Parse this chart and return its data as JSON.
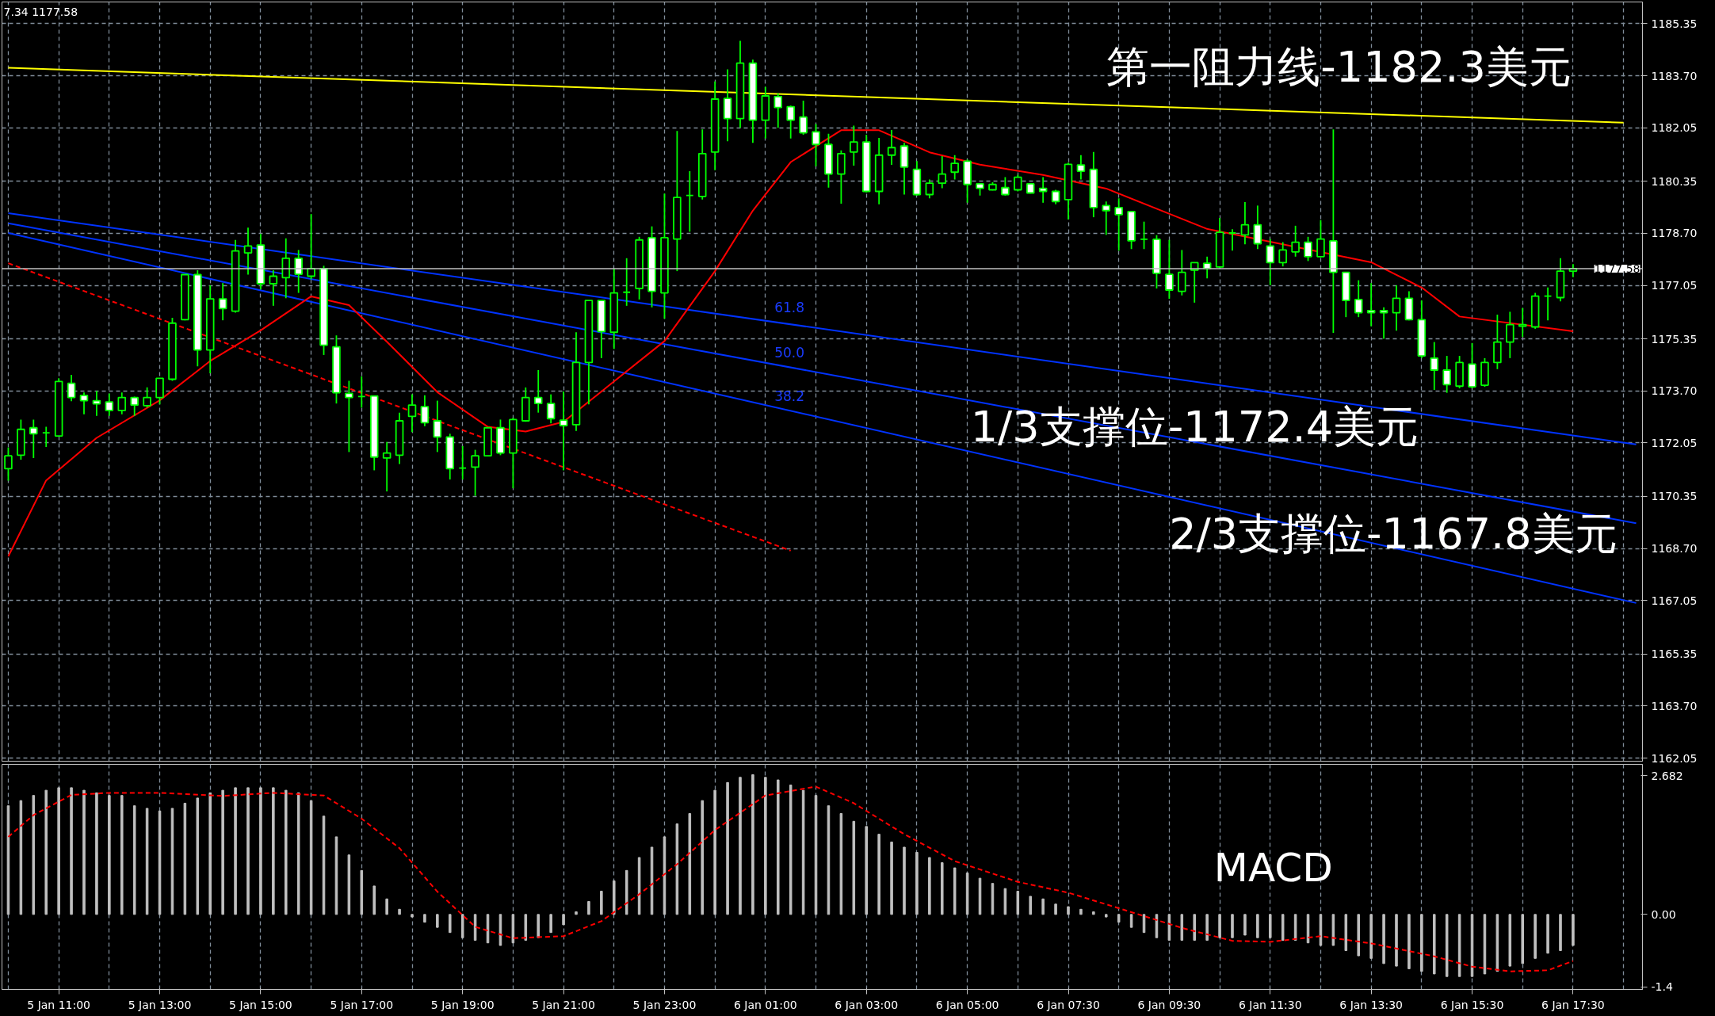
{
  "chart_data": [
    {
      "type": "candlestick",
      "color": "#00ff00",
      "categories": [
        null,
        null,
        null,
        null,
        null,
        null,
        null,
        null,
        null,
        null,
        null,
        null,
        null,
        null,
        null,
        null,
        null,
        null,
        null,
        null,
        null,
        null,
        null,
        null,
        null,
        null,
        null,
        null,
        null,
        null,
        null,
        null,
        null,
        null,
        null,
        null,
        null,
        null,
        null,
        null,
        null,
        null,
        null,
        null,
        null,
        null,
        null,
        null,
        null,
        null,
        null,
        null,
        null,
        null,
        null,
        null,
        null,
        null,
        null,
        null,
        null,
        null,
        null,
        null,
        null,
        null,
        null,
        null,
        null,
        null,
        null,
        null,
        null,
        null,
        null,
        null,
        null,
        null,
        null,
        null,
        null,
        null,
        null,
        null,
        null,
        null,
        null,
        null,
        null,
        null,
        null,
        null,
        null,
        null,
        null,
        null,
        null,
        null,
        null,
        null,
        null,
        null,
        null,
        null,
        null,
        null,
        null,
        null,
        null,
        null,
        null,
        null,
        null,
        null,
        null,
        null,
        null,
        null,
        null,
        null,
        null,
        null,
        null,
        null,
        null,
        null,
        null,
        null,
        null,
        null
      ],
      "ohlc": [
        [
          1171.23,
          1171.9,
          1170.85,
          1171.64
        ],
        [
          1171.66,
          1172.79,
          1171.52,
          1172.48
        ],
        [
          1172.53,
          1172.79,
          1171.57,
          1172.34
        ],
        [
          1172.37,
          1172.56,
          1171.92,
          1172.37
        ],
        [
          1172.27,
          1174.1,
          1172.27,
          1174.0
        ],
        [
          1173.94,
          1174.21,
          1173.37,
          1173.49
        ],
        [
          1173.56,
          1173.65,
          1172.96,
          1173.39
        ],
        [
          1173.39,
          1173.7,
          1172.91,
          1173.29
        ],
        [
          1173.35,
          1173.62,
          1172.91,
          1173.08
        ],
        [
          1173.08,
          1173.65,
          1172.96,
          1173.49
        ],
        [
          1173.49,
          1173.52,
          1172.91,
          1173.25
        ],
        [
          1173.23,
          1173.81,
          1173.17,
          1173.49
        ],
        [
          1173.49,
          1174.1,
          1173.27,
          1174.1
        ],
        [
          1174.07,
          1176.02,
          1174.02,
          1175.85
        ],
        [
          1175.96,
          1177.39,
          1175.94,
          1177.39
        ],
        [
          1177.39,
          1177.53,
          1174.48,
          1175.0
        ],
        [
          1175.0,
          1177.05,
          1174.26,
          1176.62
        ],
        [
          1176.62,
          1177.12,
          1175.94,
          1176.31
        ],
        [
          1176.23,
          1178.49,
          1176.18,
          1178.14
        ],
        [
          1178.08,
          1178.88,
          1177.39,
          1178.3
        ],
        [
          1178.33,
          1178.68,
          1176.92,
          1177.1
        ],
        [
          1177.1,
          1177.53,
          1176.4,
          1177.34
        ],
        [
          1177.29,
          1178.54,
          1176.64,
          1177.91
        ],
        [
          1177.91,
          1178.17,
          1176.81,
          1177.4
        ],
        [
          1177.34,
          1179.31,
          1177.24,
          1177.58
        ],
        [
          1177.58,
          1177.67,
          1174.84,
          1175.15
        ],
        [
          1175.1,
          1175.46,
          1173.3,
          1173.64
        ],
        [
          1173.62,
          1174.02,
          1171.76,
          1173.49
        ],
        [
          1173.52,
          1174.16,
          1173.17,
          1173.52
        ],
        [
          1173.54,
          1173.54,
          1171.18,
          1171.6
        ],
        [
          1171.57,
          1172.08,
          1170.51,
          1171.73
        ],
        [
          1171.66,
          1173.01,
          1171.38,
          1172.75
        ],
        [
          1172.89,
          1173.59,
          1172.39,
          1173.25
        ],
        [
          1173.2,
          1173.56,
          1172.58,
          1172.69
        ],
        [
          1172.75,
          1173.39,
          1171.76,
          1172.24
        ],
        [
          1172.24,
          1172.34,
          1170.89,
          1171.23
        ],
        [
          1171.25,
          1171.95,
          1170.89,
          1171.25
        ],
        [
          1171.28,
          1171.83,
          1170.37,
          1171.64
        ],
        [
          1171.64,
          1172.53,
          1171.62,
          1172.53
        ],
        [
          1172.53,
          1172.79,
          1171.66,
          1171.73
        ],
        [
          1171.73,
          1172.85,
          1170.61,
          1172.79
        ],
        [
          1172.75,
          1173.81,
          1172.72,
          1173.49
        ],
        [
          1173.49,
          1174.36,
          1173.01,
          1173.3
        ],
        [
          1173.3,
          1173.59,
          1172.67,
          1172.82
        ],
        [
          1172.77,
          1173.68,
          1171.18,
          1172.6
        ],
        [
          1172.63,
          1175.56,
          1172.43,
          1174.6
        ],
        [
          1174.6,
          1176.57,
          1173.27,
          1176.57
        ],
        [
          1176.57,
          1176.57,
          1174.74,
          1175.58
        ],
        [
          1175.56,
          1177.58,
          1175.03,
          1176.81
        ],
        [
          1176.83,
          1177.91,
          1176.4,
          1176.83
        ],
        [
          1176.95,
          1178.59,
          1176.6,
          1178.49
        ],
        [
          1178.56,
          1178.92,
          1176.35,
          1176.86
        ],
        [
          1176.81,
          1179.96,
          1175.99,
          1178.56
        ],
        [
          1178.52,
          1181.95,
          1177.5,
          1179.84
        ],
        [
          1179.9,
          1180.67,
          1178.75,
          1179.9
        ],
        [
          1179.87,
          1182.0,
          1179.77,
          1181.23
        ],
        [
          1181.28,
          1183.52,
          1180.7,
          1182.96
        ],
        [
          1182.98,
          1183.9,
          1181.62,
          1182.34
        ],
        [
          1182.34,
          1184.81,
          1182.05,
          1184.1
        ],
        [
          1184.1,
          1184.21,
          1181.57,
          1182.29
        ],
        [
          1182.29,
          1183.35,
          1181.71,
          1183.06
        ],
        [
          1183.04,
          1183.14,
          1182.05,
          1182.69
        ],
        [
          1182.72,
          1182.75,
          1181.71,
          1182.29
        ],
        [
          1182.39,
          1182.91,
          1181.83,
          1181.89
        ],
        [
          1181.92,
          1182.17,
          1180.83,
          1181.52
        ],
        [
          1181.52,
          1181.86,
          1180.15,
          1180.58
        ],
        [
          1180.58,
          1181.33,
          1179.64,
          1181.23
        ],
        [
          1181.28,
          1182.12,
          1180.85,
          1181.6
        ],
        [
          1181.6,
          1181.83,
          1180.0,
          1180.03
        ],
        [
          1180.03,
          1181.73,
          1179.62,
          1181.18
        ],
        [
          1181.18,
          1181.98,
          1180.87,
          1181.42
        ],
        [
          1181.47,
          1181.57,
          1179.93,
          1180.8
        ],
        [
          1180.73,
          1180.99,
          1179.9,
          1179.93
        ],
        [
          1179.93,
          1180.41,
          1179.81,
          1180.29
        ],
        [
          1180.29,
          1181.15,
          1180.13,
          1180.58
        ],
        [
          1180.64,
          1181.18,
          1180.41,
          1180.92
        ],
        [
          1180.99,
          1181.04,
          1179.67,
          1180.25
        ],
        [
          1180.27,
          1180.29,
          1179.9,
          1180.13
        ],
        [
          1180.08,
          1180.32,
          1180.06,
          1180.25
        ],
        [
          1180.15,
          1180.48,
          1179.9,
          1179.93
        ],
        [
          1180.08,
          1180.56,
          1180.03,
          1180.48
        ],
        [
          1180.27,
          1180.29,
          1179.96,
          1179.98
        ],
        [
          1180.13,
          1180.48,
          1179.67,
          1180.03
        ],
        [
          1180.03,
          1180.08,
          1179.62,
          1179.71
        ],
        [
          1179.77,
          1180.94,
          1179.14,
          1180.89
        ],
        [
          1180.87,
          1181.18,
          1180.41,
          1180.67
        ],
        [
          1180.73,
          1181.28,
          1179.21,
          1179.52
        ],
        [
          1179.58,
          1179.71,
          1178.65,
          1179.42
        ],
        [
          1179.52,
          1179.81,
          1178.15,
          1179.29
        ],
        [
          1179.39,
          1179.39,
          1178.2,
          1178.46
        ],
        [
          1178.51,
          1179.07,
          1178.2,
          1178.51
        ],
        [
          1178.51,
          1178.64,
          1176.95,
          1177.43
        ],
        [
          1177.4,
          1178.49,
          1176.62,
          1176.9
        ],
        [
          1176.86,
          1178.17,
          1176.73,
          1177.46
        ],
        [
          1177.53,
          1177.77,
          1176.5,
          1177.77
        ],
        [
          1177.75,
          1177.96,
          1177.27,
          1177.58
        ],
        [
          1177.63,
          1179.19,
          1177.6,
          1178.73
        ],
        [
          1178.71,
          1178.83,
          1178.15,
          1178.71
        ],
        [
          1178.65,
          1179.69,
          1178.35,
          1178.97
        ],
        [
          1178.97,
          1179.58,
          1178.2,
          1178.37
        ],
        [
          1178.3,
          1178.52,
          1177.05,
          1177.77
        ],
        [
          1177.77,
          1178.42,
          1177.65,
          1178.17
        ],
        [
          1178.11,
          1178.94,
          1177.96,
          1178.42
        ],
        [
          1178.42,
          1178.59,
          1177.82,
          1177.96
        ],
        [
          1177.96,
          1179.12,
          1177.94,
          1178.52
        ],
        [
          1178.46,
          1182.0,
          1175.54,
          1177.46
        ],
        [
          1177.46,
          1177.46,
          1176.04,
          1176.57
        ],
        [
          1176.6,
          1177.21,
          1176.04,
          1176.18
        ],
        [
          1176.25,
          1177.12,
          1175.75,
          1176.18
        ],
        [
          1176.25,
          1176.35,
          1175.35,
          1176.18
        ],
        [
          1176.18,
          1177.05,
          1175.61,
          1176.64
        ],
        [
          1176.64,
          1176.86,
          1175.94,
          1175.96
        ],
        [
          1175.96,
          1176.57,
          1174.74,
          1174.81
        ],
        [
          1174.74,
          1175.25,
          1173.73,
          1174.36
        ],
        [
          1174.36,
          1174.81,
          1173.64,
          1173.9
        ],
        [
          1173.85,
          1174.81,
          1173.78,
          1174.6
        ],
        [
          1174.55,
          1175.22,
          1173.78,
          1173.83
        ],
        [
          1173.88,
          1174.74,
          1173.83,
          1174.6
        ],
        [
          1174.6,
          1176.12,
          1174.39,
          1175.25
        ],
        [
          1175.25,
          1176.21,
          1174.74,
          1175.8
        ],
        [
          1175.75,
          1176.33,
          1175.41,
          1175.8
        ],
        [
          1175.73,
          1176.81,
          1175.67,
          1176.71
        ],
        [
          1176.71,
          1176.98,
          1175.94,
          1176.71
        ],
        [
          1176.66,
          1177.91,
          1176.54,
          1177.5
        ],
        [
          1177.5,
          1177.72,
          1177.31,
          1177.58
        ],
        null,
        null,
        null,
        null,
        null
      ],
      "series": [
        {
          "type": "line",
          "color": "#ffff00",
          "values": [
            1183.95,
            null,
            null,
            null,
            null,
            null,
            null,
            null,
            null,
            null,
            null,
            null,
            null,
            null,
            null,
            null,
            null,
            null,
            null,
            null,
            null,
            null,
            null,
            null,
            null,
            null,
            null,
            null,
            null,
            null,
            null,
            null,
            null,
            null,
            null,
            null,
            null,
            null,
            null,
            null,
            null,
            null,
            null,
            null,
            null,
            null,
            null,
            null,
            null,
            null,
            null,
            null,
            null,
            null,
            null,
            null,
            null,
            null,
            null,
            null,
            null,
            null,
            null,
            null,
            null,
            null,
            null,
            null,
            null,
            null,
            null,
            null,
            null,
            null,
            null,
            null,
            null,
            null,
            null,
            null,
            null,
            null,
            null,
            null,
            null,
            null,
            null,
            null,
            null,
            null,
            null,
            null,
            null,
            null,
            null,
            null,
            null,
            null,
            null,
            null,
            null,
            null,
            null,
            null,
            null,
            null,
            null,
            null,
            null,
            null,
            null,
            null,
            null,
            null,
            null,
            null,
            null,
            null,
            null,
            null,
            null,
            null,
            null,
            null,
            null,
            null,
            null,
            null,
            1182.21,
            null
          ]
        },
        {
          "type": "line",
          "color": "#0033ff",
          "values": [
            1179.34,
            null,
            null,
            null,
            null,
            null,
            null,
            null,
            null,
            null,
            null,
            null,
            null,
            null,
            null,
            null,
            null,
            null,
            null,
            null,
            null,
            null,
            null,
            null,
            null,
            null,
            null,
            null,
            null,
            null,
            null,
            null,
            null,
            null,
            null,
            null,
            null,
            null,
            null,
            null,
            null,
            null,
            null,
            null,
            null,
            null,
            null,
            null,
            null,
            null,
            null,
            null,
            null,
            null,
            null,
            null,
            null,
            null,
            null,
            null,
            null,
            null,
            null,
            null,
            null,
            null,
            null,
            null,
            null,
            null,
            null,
            null,
            null,
            null,
            null,
            null,
            null,
            null,
            null,
            null,
            null,
            null,
            null,
            null,
            null,
            null,
            null,
            null,
            null,
            null,
            null,
            null,
            null,
            null,
            null,
            null,
            null,
            null,
            null,
            null,
            null,
            null,
            null,
            null,
            null,
            null,
            null,
            null,
            null,
            null,
            null,
            null,
            null,
            null,
            null,
            null,
            null,
            null,
            null,
            null,
            null,
            null,
            null,
            null,
            null,
            null,
            null,
            null,
            null,
            1172.0
          ]
        },
        {
          "type": "line",
          "color": "#0033ff",
          "values": [
            1179.02,
            null,
            null,
            null,
            null,
            null,
            null,
            null,
            null,
            null,
            null,
            null,
            null,
            null,
            null,
            null,
            null,
            null,
            null,
            null,
            null,
            null,
            null,
            null,
            null,
            null,
            null,
            null,
            null,
            null,
            null,
            null,
            null,
            null,
            null,
            null,
            null,
            null,
            null,
            null,
            null,
            null,
            null,
            null,
            null,
            null,
            null,
            null,
            null,
            null,
            null,
            null,
            null,
            null,
            null,
            null,
            null,
            null,
            null,
            null,
            null,
            null,
            null,
            null,
            null,
            null,
            null,
            null,
            null,
            null,
            null,
            null,
            null,
            null,
            null,
            null,
            null,
            null,
            null,
            null,
            null,
            null,
            null,
            null,
            null,
            null,
            null,
            null,
            null,
            null,
            null,
            null,
            null,
            null,
            null,
            null,
            null,
            null,
            null,
            null,
            null,
            null,
            null,
            null,
            null,
            null,
            null,
            null,
            null,
            null,
            null,
            null,
            null,
            null,
            null,
            null,
            null,
            null,
            null,
            null,
            null,
            null,
            null,
            null,
            null,
            null,
            null,
            null,
            null,
            1169.5
          ]
        },
        {
          "type": "line",
          "color": "#0033ff",
          "values": [
            1178.71,
            null,
            null,
            null,
            null,
            null,
            null,
            null,
            null,
            null,
            null,
            null,
            null,
            null,
            null,
            null,
            null,
            null,
            null,
            null,
            null,
            null,
            null,
            null,
            null,
            null,
            null,
            null,
            null,
            null,
            null,
            null,
            null,
            null,
            null,
            null,
            null,
            null,
            null,
            null,
            null,
            null,
            null,
            null,
            null,
            null,
            null,
            null,
            null,
            null,
            null,
            null,
            null,
            null,
            null,
            null,
            null,
            null,
            null,
            null,
            null,
            null,
            null,
            null,
            null,
            null,
            null,
            null,
            null,
            null,
            null,
            null,
            null,
            null,
            null,
            null,
            null,
            null,
            null,
            null,
            null,
            null,
            null,
            null,
            null,
            null,
            null,
            null,
            null,
            null,
            null,
            null,
            null,
            null,
            null,
            null,
            null,
            null,
            null,
            null,
            null,
            null,
            null,
            null,
            null,
            null,
            null,
            null,
            null,
            null,
            null,
            null,
            null,
            null,
            null,
            null,
            null,
            null,
            null,
            null,
            null,
            null,
            null,
            null,
            null,
            null,
            null,
            null,
            null,
            1166.97
          ]
        },
        {
          "type": "line",
          "color": "#ff0000",
          "line_style": "dashed",
          "values": [
            1177.75,
            null,
            null,
            null,
            null,
            null,
            null,
            null,
            null,
            null,
            null,
            null,
            null,
            null,
            null,
            null,
            null,
            null,
            null,
            null,
            null,
            null,
            null,
            null,
            null,
            null,
            null,
            null,
            null,
            null,
            null,
            null,
            null,
            null,
            null,
            null,
            null,
            null,
            null,
            null,
            null,
            null,
            null,
            null,
            null,
            null,
            null,
            null,
            null,
            null,
            null,
            null,
            null,
            null,
            null,
            null,
            null,
            null,
            null,
            null,
            null,
            null,
            1168.63,
            null,
            null,
            null,
            null,
            null,
            null,
            null,
            null,
            null,
            null,
            null,
            null,
            null,
            null,
            null,
            null,
            null,
            null,
            null,
            null,
            null,
            null,
            null,
            null,
            null,
            null,
            null,
            null,
            null,
            null,
            null,
            null,
            null,
            null,
            null,
            null,
            null,
            null,
            null,
            null,
            null,
            null,
            null,
            null,
            null,
            null,
            null,
            null,
            null,
            null,
            null,
            null,
            null,
            null,
            null,
            null,
            null,
            null,
            null,
            null,
            null,
            null,
            null,
            null,
            null,
            null,
            null
          ]
        },
        {
          "type": "line",
          "color": "#ff0000",
          "values": [
            1168.45,
            null,
            null,
            1170.86,
            null,
            null,
            null,
            1172.21,
            null,
            null,
            null,
            null,
            1173.4,
            null,
            null,
            null,
            1174.65,
            null,
            null,
            null,
            1175.62,
            null,
            null,
            null,
            1176.7,
            null,
            null,
            1176.42,
            null,
            null,
            1175.26,
            null,
            null,
            null,
            1173.66,
            null,
            null,
            null,
            1172.56,
            null,
            null,
            1172.41,
            null,
            null,
            1172.72,
            null,
            null,
            null,
            1174.0,
            null,
            null,
            null,
            1175.28,
            null,
            null,
            null,
            1177.5,
            null,
            null,
            1179.42,
            null,
            null,
            1180.96,
            null,
            null,
            null,
            1181.97,
            null,
            null,
            1181.97,
            null,
            null,
            null,
            1181.27,
            null,
            null,
            null,
            1180.88,
            null,
            null,
            null,
            null,
            1180.55,
            null,
            null,
            null,
            null,
            1180.12,
            null,
            null,
            null,
            1179.48,
            null,
            null,
            null,
            1178.84,
            null,
            null,
            null,
            null,
            null,
            null,
            null,
            null,
            null,
            null,
            null,
            null,
            1177.78,
            null,
            null,
            null,
            1176.98,
            null,
            null,
            1176.06,
            null,
            null,
            null,
            null,
            null,
            null,
            null,
            null,
            1175.59,
            null,
            null,
            null,
            null,
            null
          ]
        }
      ],
      "ref_lines": [
        {
          "axis": "y",
          "value": 1177.58,
          "label": "1177.58",
          "color": "#c0c0c0"
        }
      ],
      "annotations": [
        "第一阻力线-1182.3美元",
        "1/3支撑位-1172.4美元",
        "2/3支撑位-1167.8美元",
        "61.8",
        "50.0",
        "38.2",
        "7.34 1177.58"
      ],
      "ylim": [
        1161.95,
        1186.04
      ],
      "yticks": [
        1185.35,
        {
          "value": 1183.7,
          "label": "1183.70"
        },
        1182.05,
        1180.35,
        {
          "value": 1178.7,
          "label": "1178.70"
        },
        1177.05,
        1175.35,
        {
          "value": 1173.7,
          "label": "1173.70"
        },
        1172.05,
        1170.35,
        {
          "value": 1168.7,
          "label": "1168.70"
        },
        1167.05,
        1165.35,
        {
          "value": 1163.7,
          "label": "1163.70"
        },
        1162.05
      ],
      "tick_labels": "y",
      "grid": true
    },
    {
      "type": "bar",
      "categories": [
        null,
        null,
        null,
        null,
        "5 Jan 11:00",
        null,
        null,
        null,
        null,
        null,
        null,
        null,
        "5 Jan 13:00",
        null,
        null,
        null,
        null,
        null,
        null,
        null,
        "5 Jan 15:00",
        null,
        null,
        null,
        null,
        null,
        null,
        null,
        "5 Jan 17:00",
        null,
        null,
        null,
        null,
        null,
        null,
        null,
        "5 Jan 19:00",
        null,
        null,
        null,
        null,
        null,
        null,
        null,
        "5 Jan 21:00",
        null,
        null,
        null,
        null,
        null,
        null,
        null,
        "5 Jan 23:00",
        null,
        null,
        null,
        null,
        null,
        null,
        null,
        "6 Jan 01:00",
        null,
        null,
        null,
        null,
        null,
        null,
        null,
        "6 Jan 03:00",
        null,
        null,
        null,
        null,
        null,
        null,
        null,
        "6 Jan 05:00",
        null,
        null,
        null,
        null,
        null,
        null,
        null,
        "6 Jan 07:30",
        null,
        null,
        null,
        null,
        null,
        null,
        null,
        "6 Jan 09:30",
        null,
        null,
        null,
        null,
        null,
        null,
        null,
        "6 Jan 11:30",
        null,
        null,
        null,
        null,
        null,
        null,
        null,
        "6 Jan 13:30",
        null,
        null,
        null,
        null,
        null,
        null,
        null,
        "6 Jan 15:30",
        null,
        null,
        null,
        null,
        null,
        null,
        null,
        "6 Jan 17:30",
        null,
        null,
        null,
        null,
        null
      ],
      "series": [
        {
          "type": "bar",
          "color": "#c0c0c0",
          "values": [
            2.1,
            2.2,
            2.3,
            2.4,
            2.45,
            2.45,
            2.4,
            2.35,
            2.3,
            2.3,
            2.1,
            2.05,
            2.0,
            2.05,
            2.15,
            2.25,
            2.35,
            2.4,
            2.45,
            2.45,
            2.45,
            2.45,
            2.4,
            2.35,
            2.2,
            1.9,
            1.5,
            1.15,
            0.85,
            0.55,
            0.3,
            0.1,
            -0.05,
            -0.15,
            -0.25,
            -0.35,
            -0.45,
            -0.5,
            -0.55,
            -0.6,
            -0.55,
            -0.5,
            -0.45,
            -0.35,
            -0.2,
            0.05,
            0.25,
            0.45,
            0.65,
            0.85,
            1.1,
            1.3,
            1.5,
            1.75,
            1.95,
            2.2,
            2.4,
            2.55,
            2.65,
            2.7,
            2.65,
            2.6,
            2.5,
            2.4,
            2.3,
            2.1,
            1.95,
            1.8,
            1.7,
            1.55,
            1.4,
            1.3,
            1.2,
            1.1,
            1.0,
            0.9,
            0.8,
            0.7,
            0.6,
            0.5,
            0.45,
            0.35,
            0.3,
            0.2,
            0.15,
            0.1,
            0.05,
            -0.05,
            -0.15,
            -0.25,
            -0.35,
            -0.45,
            -0.5,
            -0.5,
            -0.5,
            -0.5,
            -0.45,
            -0.45,
            -0.4,
            -0.45,
            -0.45,
            -0.5,
            -0.5,
            -0.55,
            -0.6,
            -0.6,
            -0.7,
            -0.8,
            -0.85,
            -0.95,
            -1.0,
            -1.05,
            -1.1,
            -1.15,
            -1.2,
            -1.2,
            -1.2,
            -1.15,
            -1.1,
            -1.0,
            -0.95,
            -0.85,
            -0.75,
            -0.7,
            -0.6,
            null,
            null,
            null,
            null,
            null
          ]
        },
        {
          "type": "line",
          "color": "#ff0000",
          "line_style": "dashed",
          "values": [
            1.5,
            null,
            1.92,
            null,
            null,
            2.31,
            null,
            null,
            2.35,
            null,
            null,
            null,
            2.35,
            null,
            null,
            null,
            null,
            2.29,
            null,
            null,
            null,
            2.35,
            null,
            null,
            null,
            2.3,
            null,
            null,
            1.85,
            null,
            null,
            1.28,
            null,
            null,
            0.44,
            null,
            null,
            -0.24,
            null,
            null,
            -0.46,
            null,
            null,
            null,
            -0.42,
            null,
            null,
            -0.13,
            null,
            null,
            0.39,
            null,
            null,
            0.97,
            null,
            null,
            1.63,
            null,
            null,
            null,
            2.3,
            null,
            null,
            null,
            2.47,
            null,
            null,
            2.15,
            null,
            null,
            null,
            1.55,
            null,
            null,
            null,
            1.03,
            null,
            null,
            null,
            null,
            0.63,
            null,
            null,
            null,
            0.42,
            null,
            null,
            null,
            0.12,
            null,
            null,
            null,
            null,
            -0.26,
            null,
            null,
            null,
            -0.51,
            null,
            null,
            -0.53,
            null,
            null,
            null,
            -0.42,
            null,
            null,
            null,
            -0.56,
            null,
            null,
            null,
            null,
            -0.81,
            null,
            null,
            -1.01,
            null,
            null,
            -1.1,
            null,
            null,
            -1.08,
            null,
            -0.9,
            null,
            null,
            null,
            null,
            null
          ]
        }
      ],
      "annotations": [
        "MACD"
      ],
      "ylim": [
        -1.45,
        2.9
      ],
      "yticks": [
        2.682,
        {
          "value": 0,
          "label": "0.00"
        },
        -1.4
      ],
      "grid": "x"
    }
  ]
}
